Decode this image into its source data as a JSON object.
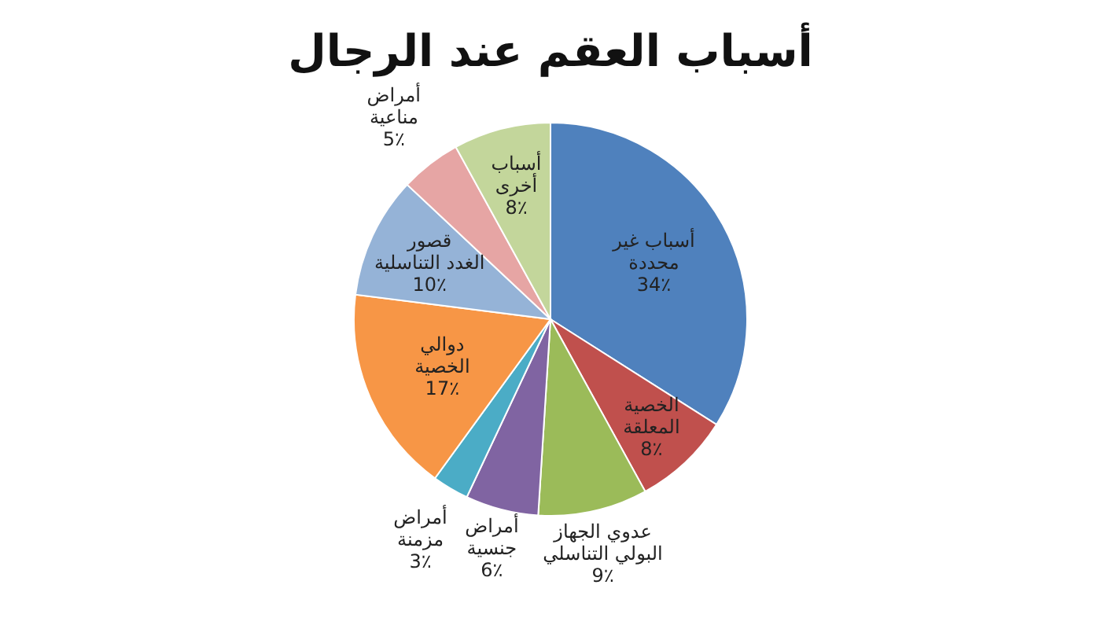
{
  "chart_data": {
    "type": "pie",
    "title": "أسباب العقم عند الرجال",
    "categories": [
      "أسباب غير\nمحددة",
      "الخصية\nالمعلقة",
      "عدوي الجهاز\nالبولي التناسلي",
      "أمراض\nجنسية",
      "أمراض\nمزمنة",
      "دوالي\nالخصية",
      "قصور\nالغدد التناسلية",
      "أمراض\nمناعية",
      "أسباب\nأخرى"
    ],
    "values": [
      34,
      8,
      9,
      6,
      3,
      17,
      10,
      5,
      8
    ],
    "value_labels": [
      "34٪",
      "8٪",
      "9٪",
      "6٪",
      "3٪",
      "17٪",
      "10٪",
      "5٪",
      "8٪"
    ],
    "colors": [
      "#4f81bd",
      "#c0504d",
      "#9bbb59",
      "#8064a2",
      "#4bacc6",
      "#f79646",
      "#95b3d7",
      "#e6a5a4",
      "#c3d69b"
    ]
  }
}
